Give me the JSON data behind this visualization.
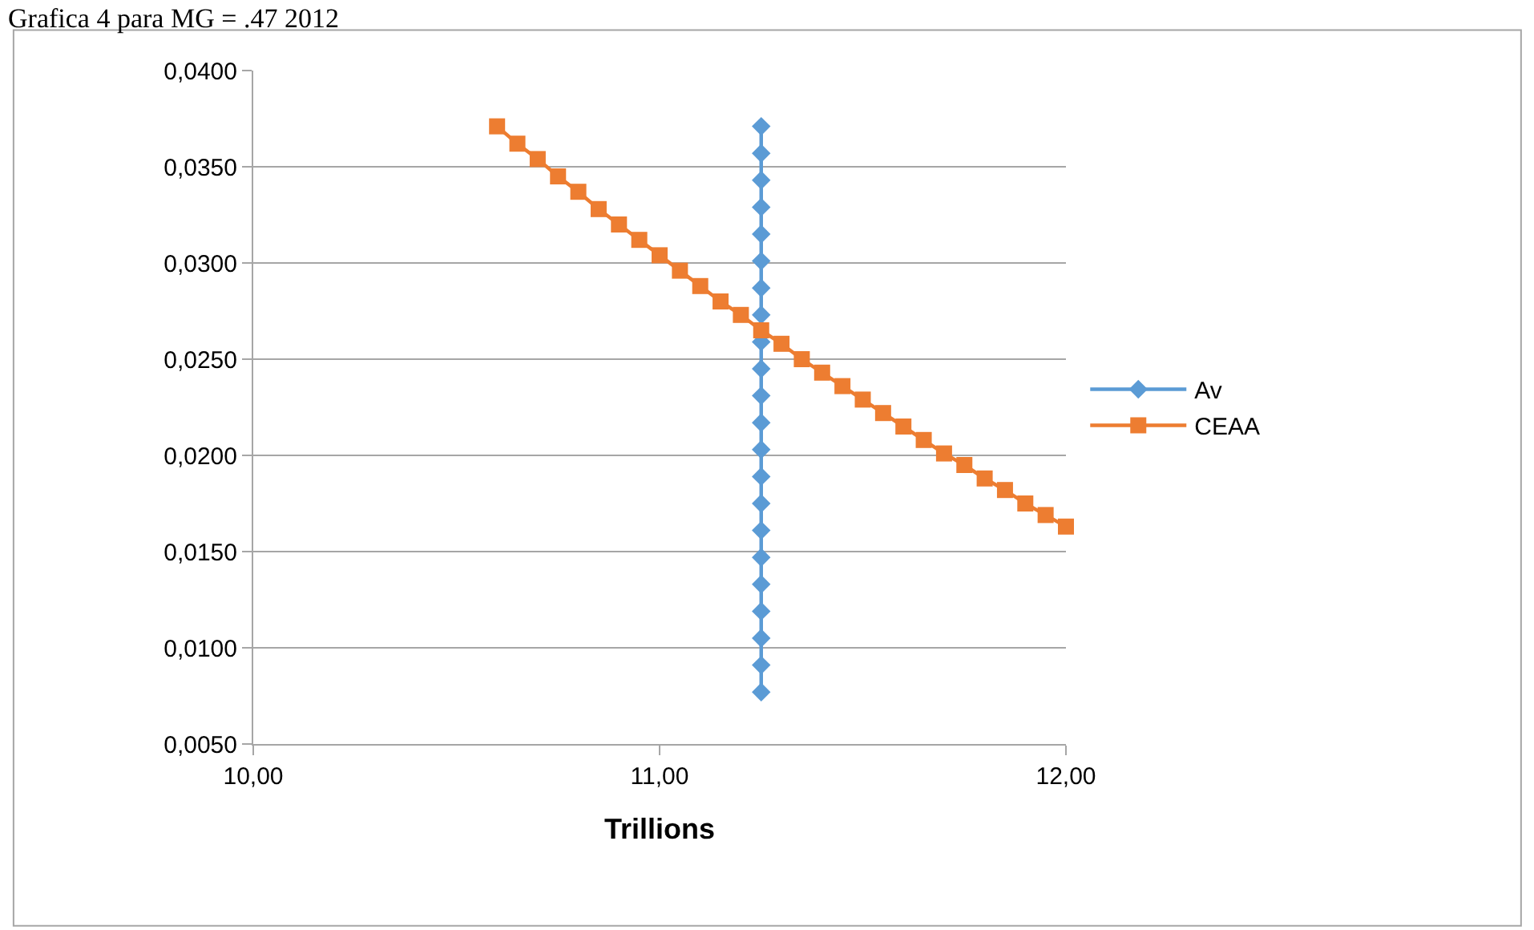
{
  "chart_data": {
    "type": "line",
    "title": "Grafica 4 para MG = .47 2012",
    "xlabel": "Trillions",
    "xlim": [
      10,
      12
    ],
    "xticks": [
      {
        "value": 10,
        "label": "10,00"
      },
      {
        "value": 11,
        "label": "11,00"
      },
      {
        "value": 12,
        "label": "12,00"
      }
    ],
    "ylim": [
      0.005,
      0.04
    ],
    "yticks": [
      {
        "value": 0.005,
        "label": "0,0050"
      },
      {
        "value": 0.01,
        "label": "0,0100"
      },
      {
        "value": 0.015,
        "label": "0,0150"
      },
      {
        "value": 0.02,
        "label": "0,0200"
      },
      {
        "value": 0.025,
        "label": "0,0250"
      },
      {
        "value": 0.03,
        "label": "0,0300"
      },
      {
        "value": 0.035,
        "label": "0,0350"
      },
      {
        "value": 0.04,
        "label": "0,0400"
      }
    ],
    "grid": "y",
    "legend": "right",
    "line_style": "solid",
    "series": [
      {
        "name": "Av",
        "color": "#5b9bd5",
        "marker": "diamond",
        "x": [
          11.25,
          11.25,
          11.25,
          11.25,
          11.25,
          11.25,
          11.25,
          11.25,
          11.25,
          11.25,
          11.25,
          11.25,
          11.25,
          11.25,
          11.25,
          11.25,
          11.25,
          11.25,
          11.25,
          11.25,
          11.25,
          11.25
        ],
        "values": [
          0.0077,
          0.0091,
          0.0105,
          0.0119,
          0.0133,
          0.0147,
          0.0161,
          0.0175,
          0.0189,
          0.0203,
          0.0217,
          0.0231,
          0.0245,
          0.0259,
          0.0273,
          0.0287,
          0.0301,
          0.0315,
          0.0329,
          0.0343,
          0.0357,
          0.0371
        ]
      },
      {
        "name": "CEAA",
        "color": "#ed7d31",
        "marker": "square",
        "x": [
          10.6,
          10.65,
          10.7,
          10.75,
          10.8,
          10.85,
          10.9,
          10.95,
          11,
          11.05,
          11.1,
          11.15,
          11.2,
          11.25,
          11.3,
          11.35,
          11.4,
          11.45,
          11.5,
          11.55,
          11.6,
          11.65,
          11.7,
          11.75,
          11.8,
          11.85,
          11.9,
          11.95,
          12
        ],
        "values": [
          0.0371,
          0.0362,
          0.0354,
          0.0345,
          0.0337,
          0.0328,
          0.032,
          0.0312,
          0.0304,
          0.0296,
          0.0288,
          0.028,
          0.0273,
          0.0265,
          0.0258,
          0.025,
          0.0243,
          0.0236,
          0.0229,
          0.0222,
          0.0215,
          0.0208,
          0.0201,
          0.0195,
          0.0188,
          0.0182,
          0.0175,
          0.0169,
          0.0163
        ]
      }
    ]
  }
}
